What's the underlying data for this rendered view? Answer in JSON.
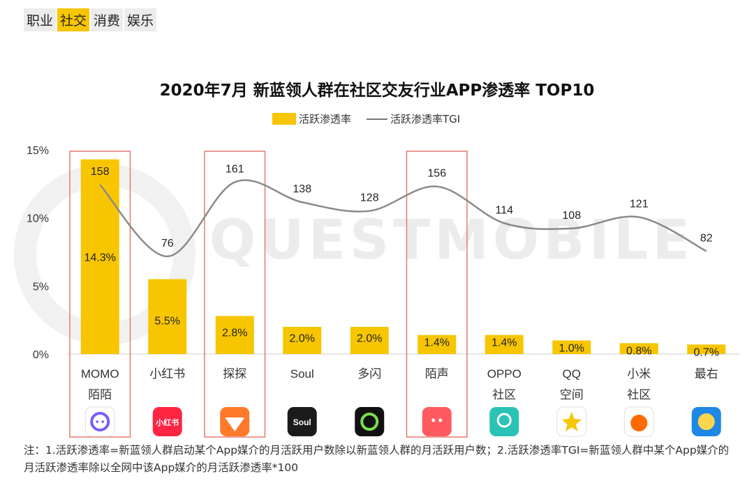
{
  "tabs": [
    {
      "label": "职业",
      "active": false
    },
    {
      "label": "社交",
      "active": true
    },
    {
      "label": "消费",
      "active": false
    },
    {
      "label": "娱乐",
      "active": false
    }
  ],
  "watermark": "QUESTMOBILE",
  "chart_data": {
    "type": "bar",
    "title": "2020年7月 新蓝领人群在社区交友行业APP渗透率 TOP10",
    "categories": [
      [
        "MOMO",
        "陌陌"
      ],
      [
        "小红书"
      ],
      [
        "探探"
      ],
      [
        "Soul"
      ],
      [
        "多闪"
      ],
      [
        "陌声"
      ],
      [
        "OPPO",
        "社区"
      ],
      [
        "QQ",
        "空间"
      ],
      [
        "小米",
        "社区"
      ],
      [
        "最右"
      ]
    ],
    "series": [
      {
        "name": "活跃渗透率",
        "type": "bar",
        "values": [
          14.3,
          5.5,
          2.8,
          2.0,
          2.0,
          1.4,
          1.4,
          1.0,
          0.8,
          0.7
        ],
        "labels": [
          "14.3%",
          "5.5%",
          "2.8%",
          "2.0%",
          "2.0%",
          "1.4%",
          "1.4%",
          "1.0%",
          "0.8%",
          "0.7%"
        ]
      },
      {
        "name": "活跃渗透率TGI",
        "type": "line",
        "values": [
          158,
          76,
          161,
          138,
          128,
          156,
          114,
          108,
          121,
          82
        ]
      }
    ],
    "y_ticks": [
      "15%",
      "10%",
      "5%",
      "0%"
    ],
    "ylim": [
      0,
      15
    ],
    "highlighted_categories": [
      "MOMO 陌陌",
      "探探",
      "陌声"
    ],
    "colors": {
      "bar": "#f7c600",
      "line": "#8a8a8a",
      "highlight": "#e57a6f"
    }
  },
  "app_icons": [
    {
      "name": "momo-icon",
      "bg": "#ffffff",
      "glyph": ""
    },
    {
      "name": "xiaohongshu-icon",
      "bg": "#ff2442",
      "glyph": "小红书"
    },
    {
      "name": "tantan-icon",
      "bg": "#ff7a2a",
      "glyph": ""
    },
    {
      "name": "soul-icon",
      "bg": "#1b1b1b",
      "glyph": "Soul"
    },
    {
      "name": "duoshan-icon",
      "bg": "#111111",
      "glyph": ""
    },
    {
      "name": "mosheng-icon",
      "bg": "#ff5a5f",
      "glyph": ""
    },
    {
      "name": "oppo-community-icon",
      "bg": "#2bc3b6",
      "glyph": ""
    },
    {
      "name": "qq-zone-icon",
      "bg": "#ffffff",
      "glyph": ""
    },
    {
      "name": "xiaomi-community-icon",
      "bg": "#ffffff",
      "glyph": ""
    },
    {
      "name": "zuiyou-icon",
      "bg": "#1e88e5",
      "glyph": ""
    }
  ],
  "footnote": "注：1.活跃渗透率=新蓝领人群启动某个App媒介的月活跃用户数除以新蓝领人群的月活跃用户数；2.活跃渗透率TGI=新蓝领人群中某个App媒介的月活跃渗透率除以全网中该App媒介的月活跃渗透率*100"
}
